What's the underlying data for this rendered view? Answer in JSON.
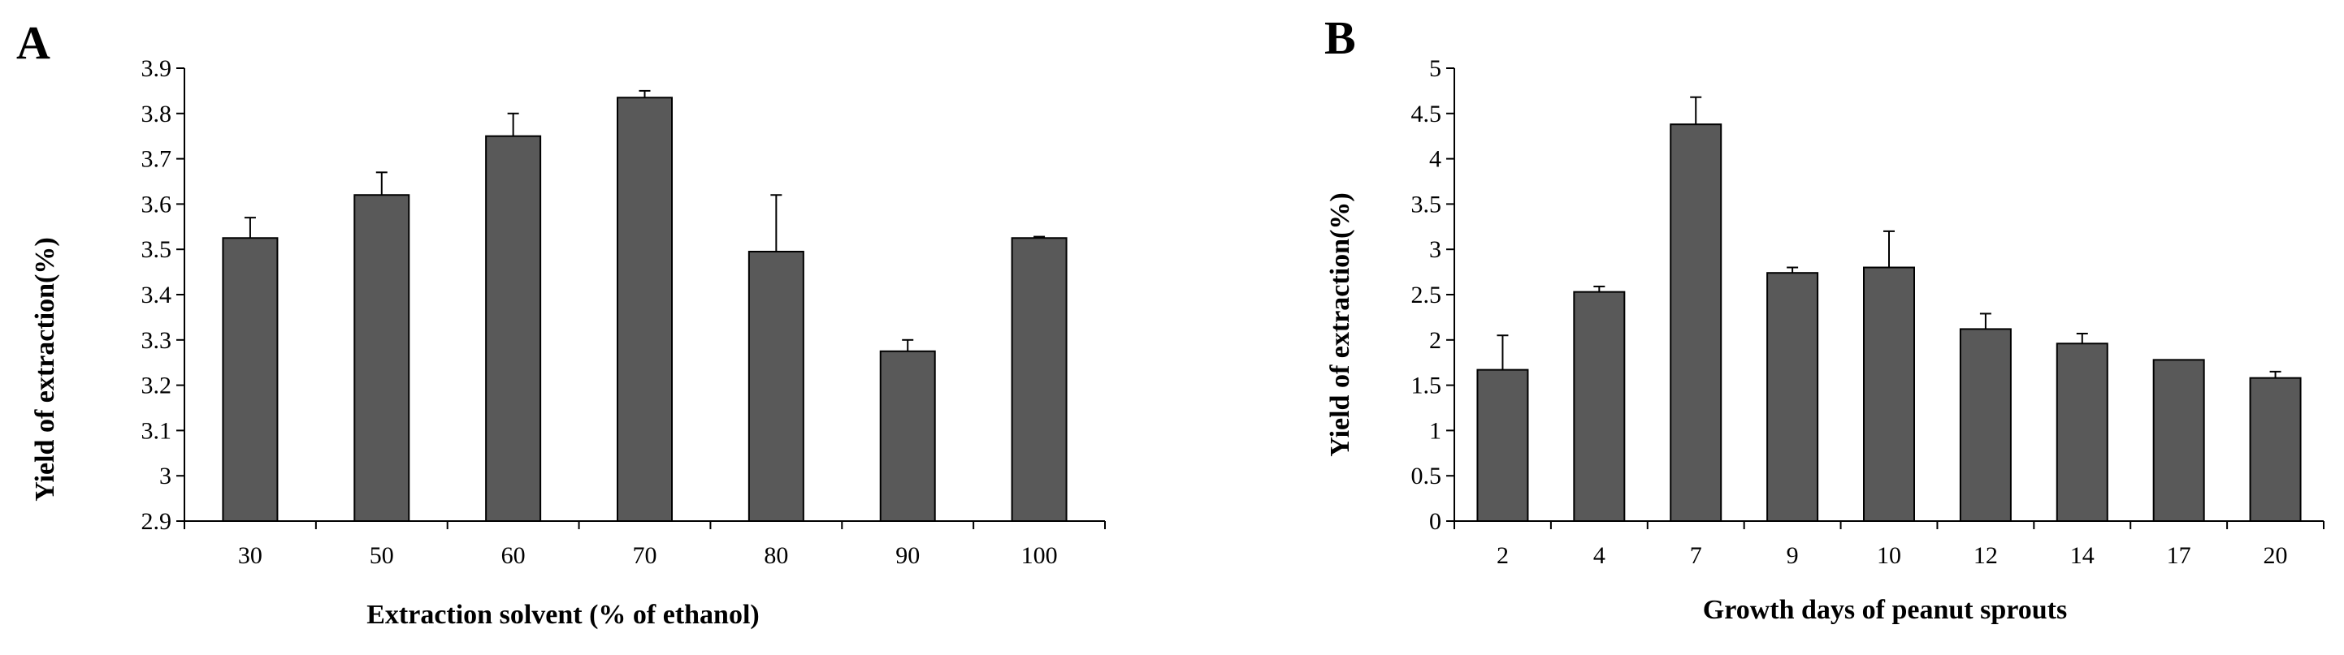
{
  "chart_data": [
    {
      "type": "bar",
      "panel_label": "A",
      "categories": [
        "30",
        "50",
        "60",
        "70",
        "80",
        "90",
        "100"
      ],
      "values": [
        3.525,
        3.62,
        3.75,
        3.835,
        3.495,
        3.275,
        3.525
      ],
      "errors": [
        0.045,
        0.05,
        0.05,
        0.015,
        0.125,
        0.025,
        0.003
      ],
      "xlabel": "Extraction solvent (% of ethanol)",
      "ylabel": "Yield of extraction(%)",
      "ylim": [
        2.9,
        3.9
      ],
      "yticks": [
        2.9,
        3,
        3.1,
        3.2,
        3.3,
        3.4,
        3.5,
        3.6,
        3.7,
        3.8,
        3.9
      ],
      "ytick_labels": [
        "2.9",
        "3",
        "3.1",
        "3.2",
        "3.3",
        "3.4",
        "3.5",
        "3.6",
        "3.7",
        "3.8",
        "3.9"
      ],
      "color": "#595959",
      "grid": false
    },
    {
      "type": "bar",
      "panel_label": "B",
      "categories": [
        "2",
        "4",
        "7",
        "9",
        "10",
        "12",
        "14",
        "17",
        "20"
      ],
      "values": [
        1.67,
        2.53,
        4.38,
        2.74,
        2.8,
        2.12,
        1.96,
        1.78,
        1.58
      ],
      "errors": [
        0.38,
        0.06,
        0.3,
        0.06,
        0.4,
        0.17,
        0.11,
        0.0,
        0.07
      ],
      "xlabel": "Growth days of peanut sprouts",
      "ylabel": "Yield of extraction(%)",
      "ylim": [
        0,
        5
      ],
      "yticks": [
        0,
        0.5,
        1,
        1.5,
        2,
        2.5,
        3,
        3.5,
        4,
        4.5,
        5
      ],
      "ytick_labels": [
        "0",
        "0.5",
        "1",
        "1.5",
        "2",
        "2.5",
        "3",
        "3.5",
        "4",
        "4.5",
        "5"
      ],
      "color": "#595959",
      "grid": false
    }
  ]
}
